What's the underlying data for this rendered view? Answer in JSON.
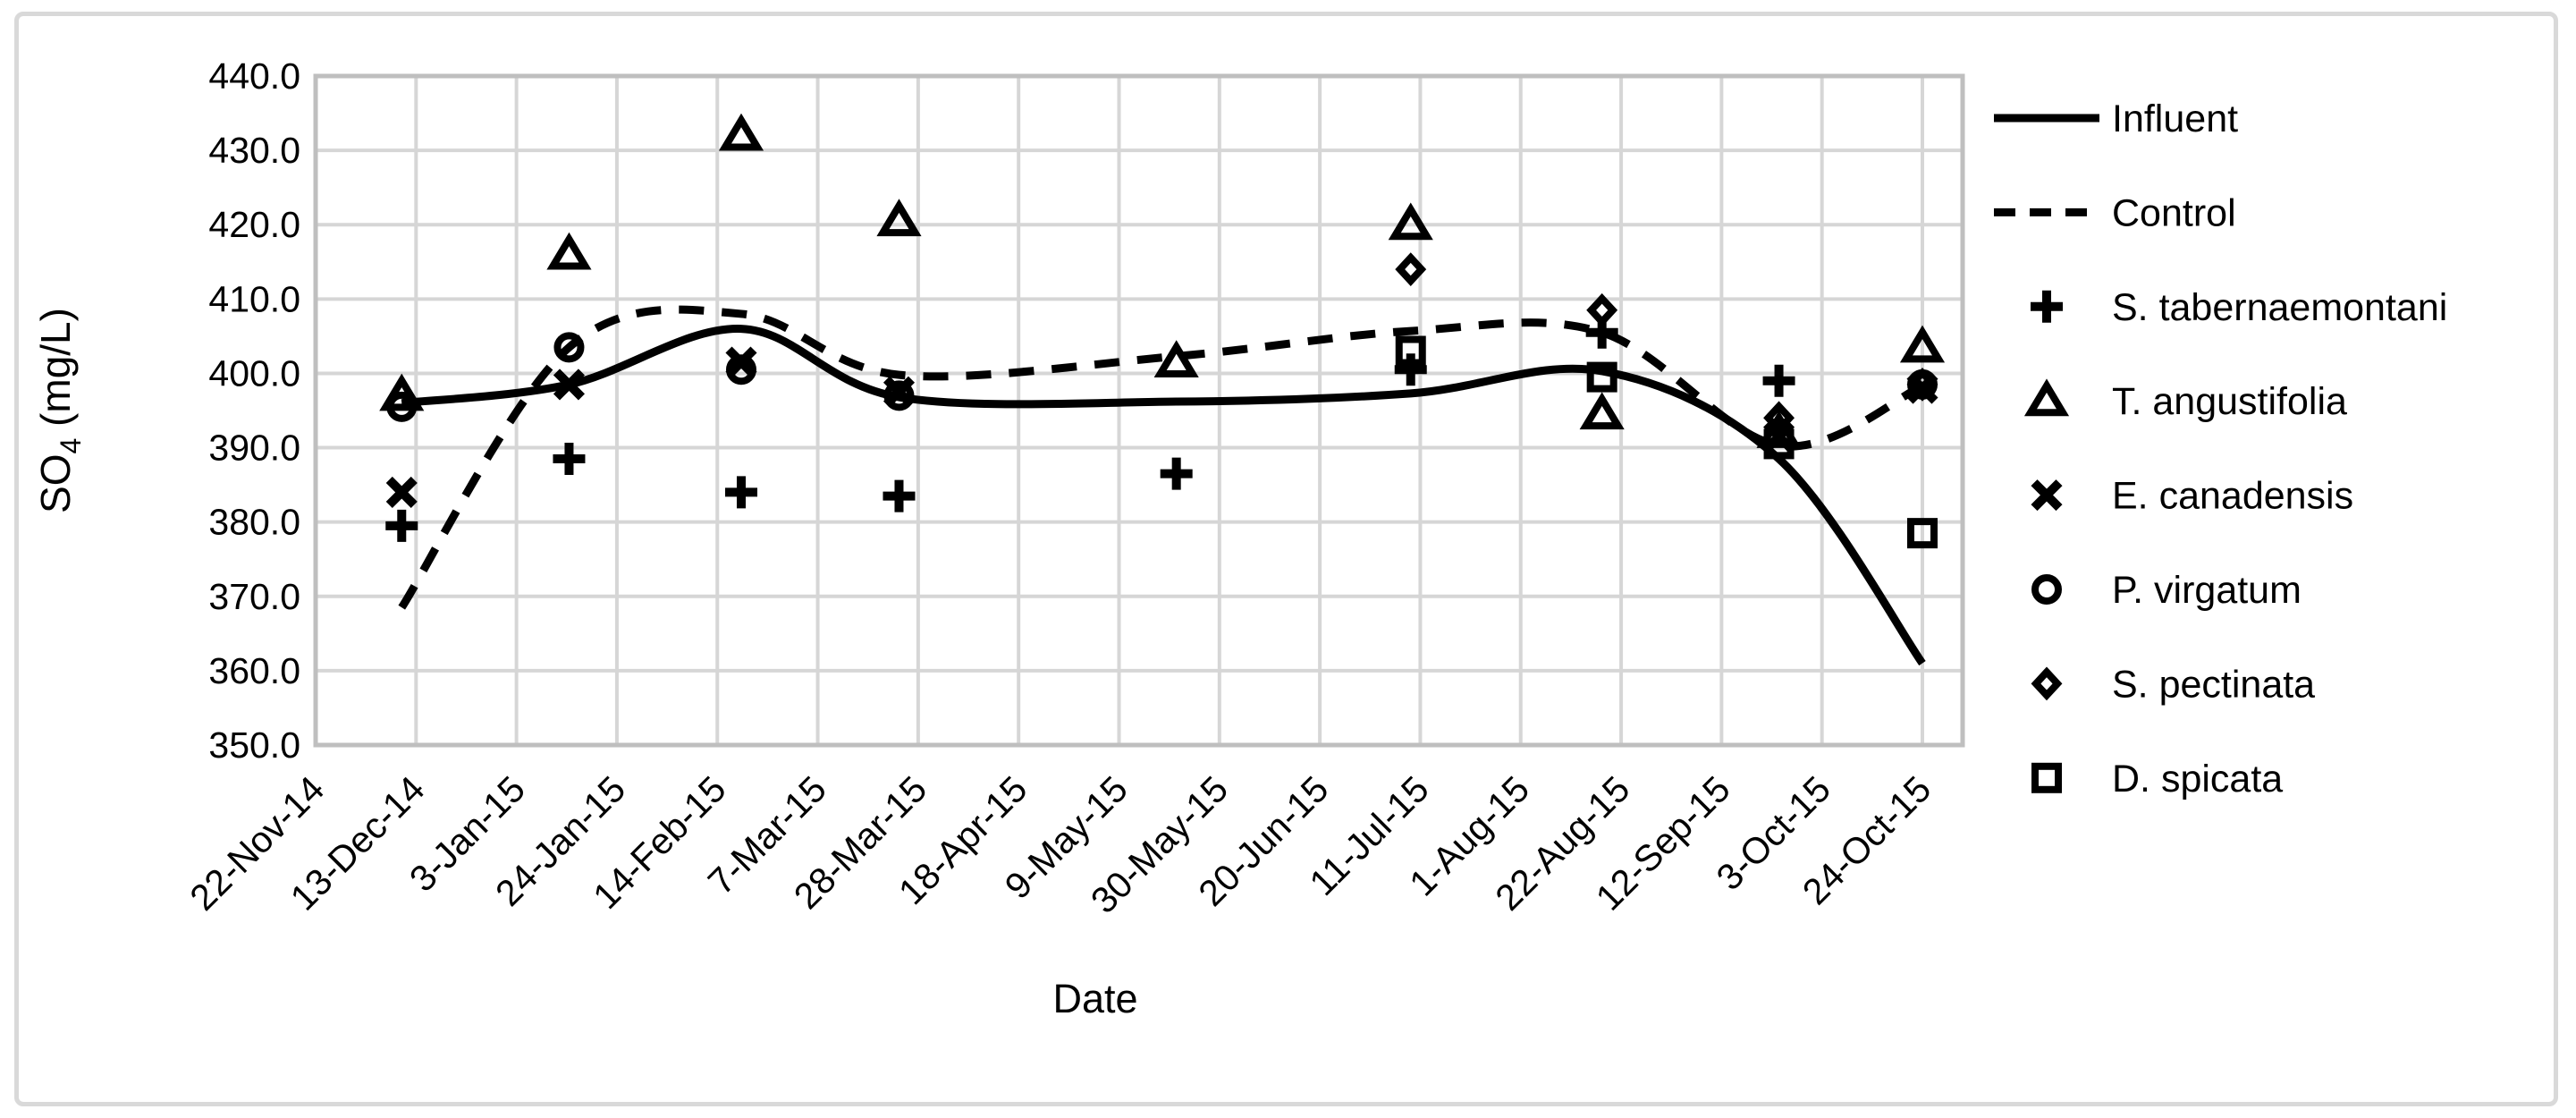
{
  "figure": {
    "background": "#ffffff",
    "border_color": "#d9d9d9"
  },
  "chart_data": {
    "type": "scatter",
    "title": "",
    "xlabel": "Date",
    "ylabel": {
      "pre": "SO",
      "sub": "4",
      "post": " (mg/L)"
    },
    "ylim": [
      350,
      440
    ],
    "ytick_step": 10,
    "ytick_labels": [
      "440.0",
      "430.0",
      "420.0",
      "410.0",
      "400.0",
      "390.0",
      "380.0",
      "370.0",
      "360.0",
      "350.0"
    ],
    "grid": true,
    "legend_position": "right",
    "x_axis": {
      "tick_interval_days": 21,
      "axis_max_days": 344,
      "tick_labels": [
        "22-Nov-14",
        "13-Dec-14",
        "3-Jan-15",
        "24-Jan-15",
        "14-Feb-15",
        "7-Mar-15",
        "28-Mar-15",
        "18-Apr-15",
        "9-May-15",
        "30-May-15",
        "20-Jun-15",
        "11-Jul-15",
        "1-Aug-15",
        "22-Aug-15",
        "12-Sep-15",
        "3-Oct-15",
        "24-Oct-15"
      ]
    },
    "samples": {
      "dates_approx": [
        "10-Dec-14",
        "14-Jan-15",
        "19-Feb-15",
        "24-Mar-15",
        "21-May-15",
        "9-Jul-15",
        "18-Aug-15",
        "24-Sep-15",
        "24-Oct-15"
      ],
      "days": [
        18,
        53,
        89,
        122,
        180,
        229,
        269,
        306,
        336
      ]
    },
    "lines": [
      {
        "name": "Influent",
        "style": "solid",
        "values": [
          396.0,
          398.5,
          406.0,
          396.8,
          396.2,
          397.3,
          400.3,
          388.5,
          361.0
        ]
      },
      {
        "name": "Control",
        "style": "dashed",
        "values": [
          368.5,
          403.5,
          408.0,
          399.8,
          402.3,
          405.7,
          405.5,
          390.3,
          398.3
        ]
      }
    ],
    "series": [
      {
        "name": "S. tabernaemontani",
        "marker": "plus",
        "values": [
          379.5,
          388.5,
          384.0,
          383.5,
          386.5,
          400.5,
          405.5,
          399.0,
          null
        ]
      },
      {
        "name": "T. angustifolia",
        "marker": "triangle",
        "values": [
          397.0,
          416.0,
          432.0,
          420.5,
          401.5,
          420.0,
          394.5,
          392.0,
          403.5
        ]
      },
      {
        "name": "E. canadensis",
        "marker": "x",
        "values": [
          384.0,
          398.5,
          401.5,
          397.5,
          null,
          null,
          null,
          391.5,
          398.0
        ]
      },
      {
        "name": "P. virgatum",
        "marker": "circle",
        "values": [
          395.5,
          403.5,
          400.5,
          397.0,
          null,
          null,
          null,
          null,
          398.5
        ]
      },
      {
        "name": "S. pectinata",
        "marker": "diamond",
        "values": [
          null,
          null,
          null,
          null,
          null,
          414.0,
          408.5,
          394.0,
          398.5
        ]
      },
      {
        "name": "D. spicata",
        "marker": "square",
        "values": [
          null,
          null,
          null,
          null,
          null,
          403.0,
          399.5,
          390.5,
          378.5
        ]
      }
    ],
    "style": {
      "gridline_color": "#d6d6d6",
      "plot_border_color": "#bfbfbf",
      "series_color": "#000000"
    }
  }
}
